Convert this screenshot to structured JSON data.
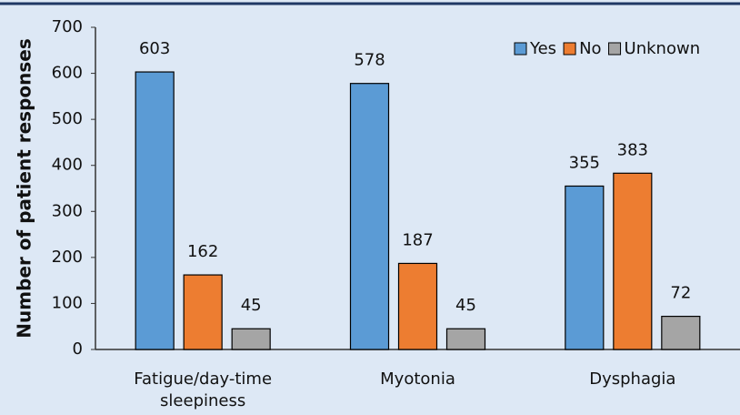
{
  "chart_data": {
    "type": "bar",
    "y_label": "Number of patient responses",
    "categories": [
      "Fatigue/day-time sleepiness",
      "Myotonia",
      "Dysphagia"
    ],
    "series": [
      {
        "name": "Yes",
        "color": "#5b9bd5",
        "values": [
          603,
          578,
          355
        ]
      },
      {
        "name": "No",
        "color": "#ed7d31",
        "values": [
          162,
          187,
          383
        ]
      },
      {
        "name": "Unknown",
        "color": "#a5a5a5",
        "values": [
          45,
          45,
          72
        ]
      }
    ],
    "ylim": [
      0,
      700
    ],
    "yticks": [
      0,
      100,
      200,
      300,
      400,
      500,
      600,
      700
    ],
    "legend": "top-right",
    "grid": false
  }
}
